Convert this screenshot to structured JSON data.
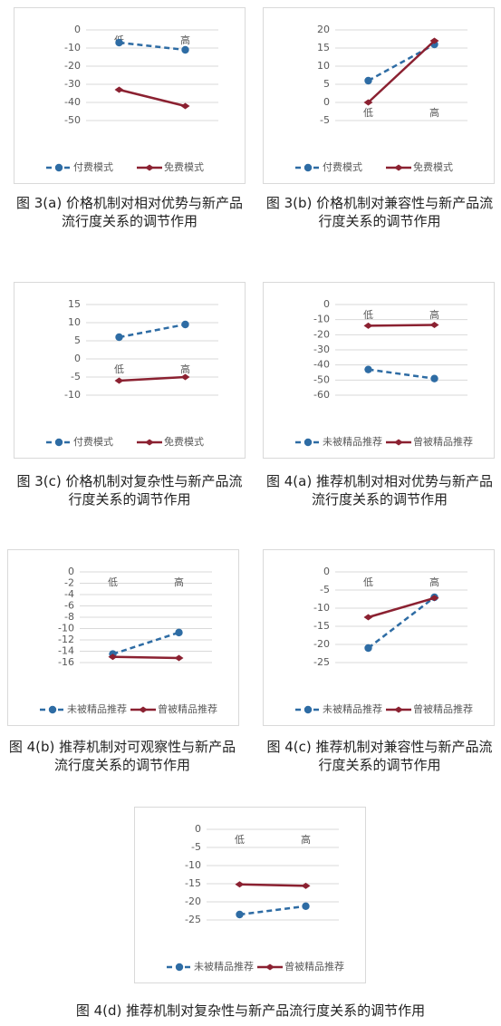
{
  "chart_data": [
    {
      "type": "line",
      "title": "图 3(a) 价格机制对相对优势与新产品流行度关系的调节作用",
      "categories": [
        "低",
        "高"
      ],
      "series": [
        {
          "name": "付费模式",
          "color": "#2e6ca4",
          "values": [
            -7,
            -11
          ]
        },
        {
          "name": "免费模式",
          "color": "#8b2131",
          "values": [
            -33,
            -42
          ]
        }
      ],
      "ylim": [
        -50,
        0
      ],
      "yticks": [
        0,
        -10,
        -20,
        -30,
        -40,
        -50
      ],
      "grid": true,
      "legend": "bottom"
    },
    {
      "type": "line",
      "title": "图 3(b) 价格机制对兼容性与新产品流行度关系的调节作用",
      "categories": [
        "低",
        "高"
      ],
      "series": [
        {
          "name": "付费模式",
          "color": "#2e6ca4",
          "values": [
            6,
            16
          ]
        },
        {
          "name": "免费模式",
          "color": "#8b2131",
          "values": [
            0,
            17
          ]
        }
      ],
      "ylim": [
        -5,
        20
      ],
      "yticks": [
        20,
        15,
        10,
        5,
        0,
        -5
      ],
      "grid": true,
      "legend": "bottom"
    },
    {
      "type": "line",
      "title": "图 3(c) 价格机制对复杂性与新产品流行度关系的调节作用",
      "categories": [
        "低",
        "高"
      ],
      "series": [
        {
          "name": "付费模式",
          "color": "#2e6ca4",
          "values": [
            6,
            9.5
          ]
        },
        {
          "name": "免费模式",
          "color": "#8b2131",
          "values": [
            -6,
            -5
          ]
        }
      ],
      "ylim": [
        -10,
        15
      ],
      "yticks": [
        15,
        10,
        5,
        0,
        -5,
        -10
      ],
      "grid": true,
      "legend": "bottom"
    },
    {
      "type": "line",
      "title": "图 4(a) 推荐机制对相对优势与新产品流行度关系的调节作用",
      "categories": [
        "低",
        "高"
      ],
      "series": [
        {
          "name": "未被精品推荐",
          "color": "#2e6ca4",
          "values": [
            -43,
            -49
          ]
        },
        {
          "name": "曾被精品推荐",
          "color": "#8b2131",
          "values": [
            -14,
            -13.5
          ]
        }
      ],
      "ylim": [
        -60,
        0
      ],
      "yticks": [
        0,
        -10,
        -20,
        -30,
        -40,
        -50,
        -60
      ],
      "grid": true,
      "legend": "bottom"
    },
    {
      "type": "line",
      "title": "图 4(b) 推荐机制对可观察性与新产品流行度关系的调节作用",
      "categories": [
        "低",
        "高"
      ],
      "series": [
        {
          "name": "未被精品推荐",
          "color": "#2e6ca4",
          "values": [
            -14.5,
            -10.7
          ]
        },
        {
          "name": "曾被精品推荐",
          "color": "#8b2131",
          "values": [
            -15,
            -15.2
          ]
        }
      ],
      "ylim": [
        -16,
        0
      ],
      "yticks": [
        0,
        -2,
        -4,
        -6,
        -8,
        -10,
        -12,
        -14,
        -16
      ],
      "grid": true,
      "legend": "bottom"
    },
    {
      "type": "line",
      "title": "图 4(c) 推荐机制对兼容性与新产品流行度关系的调节作用",
      "categories": [
        "低",
        "高"
      ],
      "series": [
        {
          "name": "未被精品推荐",
          "color": "#2e6ca4",
          "values": [
            -21,
            -7
          ]
        },
        {
          "name": "曾被精品推荐",
          "color": "#8b2131",
          "values": [
            -12.5,
            -7.2
          ]
        }
      ],
      "ylim": [
        -25,
        0
      ],
      "yticks": [
        0,
        -5,
        -10,
        -15,
        -20,
        -25
      ],
      "grid": true,
      "legend": "bottom"
    },
    {
      "type": "line",
      "title": "图 4(d) 推荐机制对复杂性与新产品流行度关系的调节作用",
      "categories": [
        "低",
        "高"
      ],
      "series": [
        {
          "name": "未被精品推荐",
          "color": "#2e6ca4",
          "values": [
            -23.5,
            -21.2
          ]
        },
        {
          "name": "曾被精品推荐",
          "color": "#8b2131",
          "values": [
            -15.2,
            -15.6
          ]
        }
      ],
      "ylim": [
        -25,
        0
      ],
      "yticks": [
        0,
        -5,
        -10,
        -15,
        -20,
        -25
      ],
      "grid": true,
      "legend": "bottom"
    }
  ]
}
